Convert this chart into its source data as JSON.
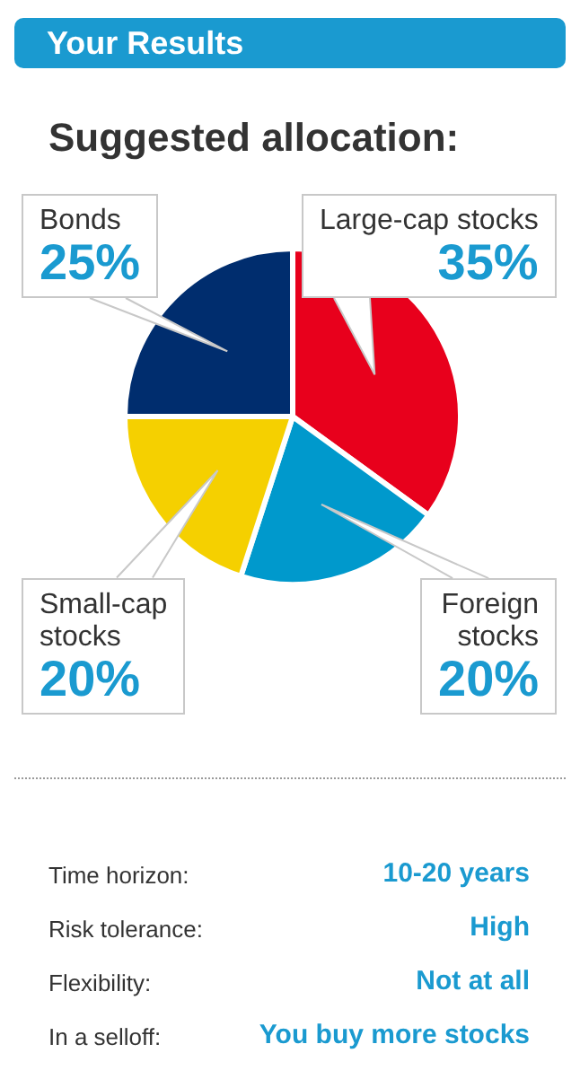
{
  "chart_data": [
    {
      "type": "other",
      "title": "Your Results"
    },
    {
      "type": "pie",
      "title": "Suggested allocation:",
      "categories": [
        "Large-cap stocks",
        "Foreign stocks",
        "Small-cap stocks",
        "Bonds"
      ],
      "values": [
        35,
        20,
        20,
        25
      ],
      "value_labels": [
        "35%",
        "20%",
        "20%",
        "25%"
      ],
      "colors": [
        "#e8001c",
        "#0099cc",
        "#f5d000",
        "#002d6e"
      ],
      "legend": false
    },
    {
      "type": "other",
      "annotations": [
        "Time horizon:",
        "10-20 years",
        "Risk tolerance:",
        "High",
        "Flexibility:",
        "Not at all",
        "In a selloff:",
        "You buy more stocks"
      ]
    }
  ]
}
